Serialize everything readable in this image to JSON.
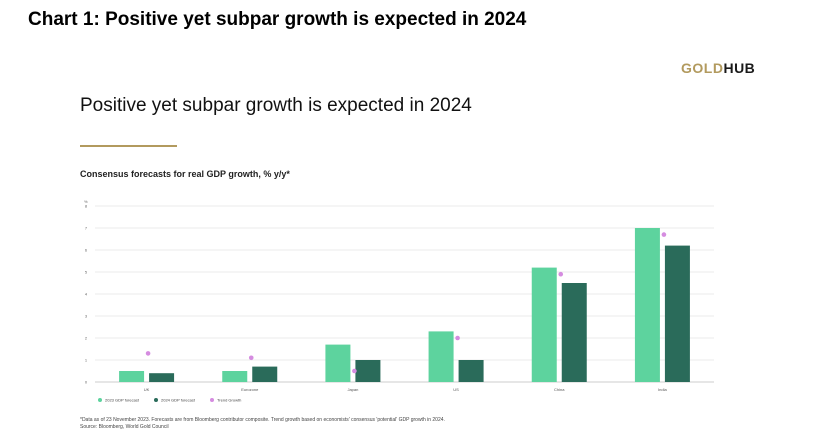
{
  "page": {
    "header_title": "Chart 1: Positive yet subpar growth is expected in 2024",
    "logo_gold": "GOLD",
    "logo_hub": "HUB",
    "chart_title": "Positive yet subpar growth is expected in 2024",
    "subtitle": "Consensus forecasts for real GDP growth, % y/y*",
    "footnote_1": "*Data as of 23 November 2023. Forecasts are from Bloomberg contributor composite. Trend growth based on economists' consensus 'potential' GDP growth in 2024.",
    "footnote_2": "Source: Bloomberg, World Gold Council"
  },
  "colors": {
    "series_2023": "#5dd39e",
    "series_2024": "#2a6b5a",
    "trend": "#d58ce0",
    "gold": "#b29a5e",
    "grid": "#e4e4e4"
  },
  "chart_data": {
    "type": "bar",
    "categories": [
      "UK",
      "Eurozone",
      "Japan",
      "US",
      "China",
      "India"
    ],
    "ylabel": "%",
    "ylim": [
      0,
      8
    ],
    "yticks": [
      "0",
      "1",
      "2",
      "3",
      "4",
      "5",
      "6",
      "7",
      "8"
    ],
    "grid": true,
    "legend_position": "bottom-left",
    "series": [
      {
        "name": "2023 GDP forecast",
        "kind": "bar",
        "values": [
          0.5,
          0.5,
          1.7,
          2.3,
          5.2,
          7.0
        ]
      },
      {
        "name": "2024 GDP forecast",
        "kind": "bar",
        "values": [
          0.4,
          0.7,
          1.0,
          1.0,
          4.5,
          6.2
        ]
      },
      {
        "name": "Trend Growth",
        "kind": "point",
        "values": [
          1.3,
          1.1,
          0.5,
          2.0,
          4.9,
          6.7
        ]
      }
    ]
  }
}
